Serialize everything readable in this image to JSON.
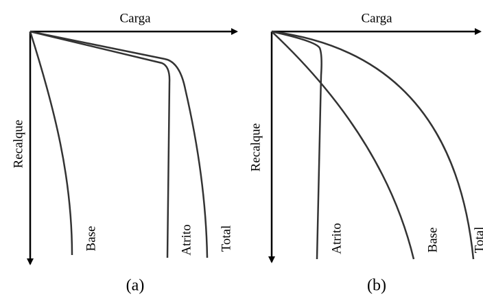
{
  "panels": [
    {
      "x_axis": "Carga",
      "y_axis": "Recalque",
      "curves": [
        "Base",
        "Atrito",
        "Total"
      ],
      "caption": "(a)"
    },
    {
      "x_axis": "Carga",
      "y_axis": "Recalque",
      "curves": [
        "Atrito",
        "Base",
        "Total"
      ],
      "caption": "(b)"
    }
  ]
}
